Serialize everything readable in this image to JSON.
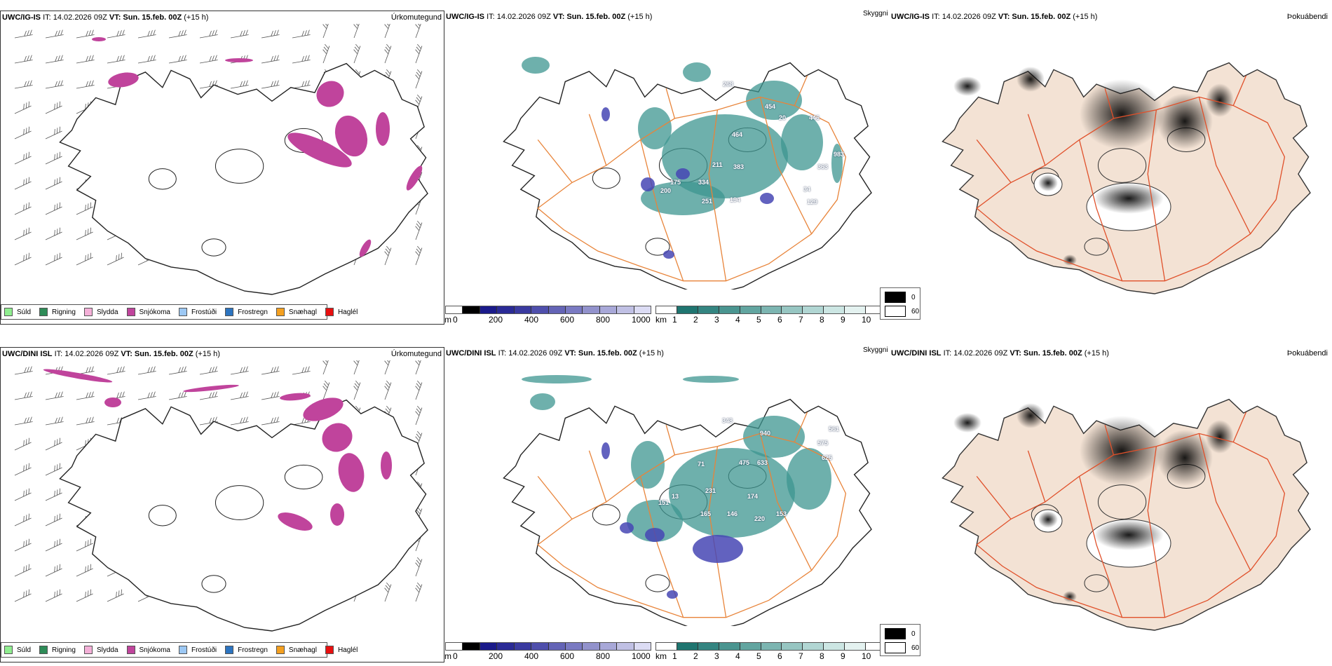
{
  "rows": [
    {
      "model": "UWC/IG-IS",
      "it_label": "IT: 14.02.2026 09Z",
      "vt_label": "VT: Sun. 15.feb. 00Z",
      "lead": "(+15 h)",
      "panels": {
        "precip_type": "Úrkomutegund",
        "visibility": "Skyggni",
        "fog": "Þokuábendi"
      },
      "cloud_base_labels": [
        "268",
        "454",
        "446",
        "464",
        "983",
        "211",
        "383",
        "363",
        "175",
        "334",
        "200",
        "251",
        "194",
        "129",
        "20",
        "34"
      ]
    },
    {
      "model": "UWC/DINI ISL",
      "it_label": "IT: 14.02.2026 09Z",
      "vt_label": "VT: Sun. 15.feb. 00Z",
      "lead": "(+15 h)",
      "panels": {
        "precip_type": "Úrkomutegund",
        "visibility": "Skyggni",
        "fog": "Þokuábendi"
      },
      "cloud_base_labels": [
        "348",
        "561",
        "940",
        "575",
        "475",
        "633",
        "625",
        "231",
        "174",
        "151",
        "165",
        "146",
        "220",
        "153",
        "13",
        "71"
      ]
    }
  ],
  "precip_legend": [
    {
      "label": "Súld",
      "color": "#90ee90"
    },
    {
      "label": "Rigning",
      "color": "#2e8b57"
    },
    {
      "label": "Slydda",
      "color": "#f4b0d8"
    },
    {
      "label": "Snjókoma",
      "color": "#c0449c"
    },
    {
      "label": "Frostúði",
      "color": "#9cc8f4"
    },
    {
      "label": "Frostregn",
      "color": "#2c74c0"
    },
    {
      "label": "Snæhagl",
      "color": "#f4a020"
    },
    {
      "label": "Haglél",
      "color": "#e81010"
    }
  ],
  "cloud_base_bar": {
    "unit": "m",
    "ticks": [
      "0",
      "200",
      "400",
      "600",
      "800",
      "1000"
    ],
    "colors": [
      "#ffffff",
      "#000000",
      "#1a1a8a",
      "#2a2a96",
      "#3a3aa0",
      "#4f4fac",
      "#6464b6",
      "#7a7ac2",
      "#9292cc",
      "#a8a8d8",
      "#c0c0e4",
      "#dcdcf4"
    ]
  },
  "visibility_bar": {
    "unit": "km",
    "ticks": [
      "1",
      "2",
      "3",
      "4",
      "5",
      "6",
      "7",
      "8",
      "9",
      "10"
    ],
    "colors": [
      "#ffffff",
      "#1f7570",
      "#348581",
      "#4a9590",
      "#62a5a0",
      "#7cb5b1",
      "#97c6c2",
      "#b1d6d3",
      "#cce6e3",
      "#e4f2f0",
      "#ffffff"
    ]
  },
  "fog_legend": [
    {
      "label": "0",
      "color": "#000000"
    },
    {
      "label": "60",
      "color": "#ffffff"
    }
  ],
  "colors": {
    "snow": "#c0449c",
    "vis": "#3d9690",
    "cloudbase": "#4646b4",
    "roads": "#e8843a",
    "land_fog": "#f3e2d4",
    "roads_fog": "#e0502a",
    "rivers": "#7a8ef0"
  }
}
